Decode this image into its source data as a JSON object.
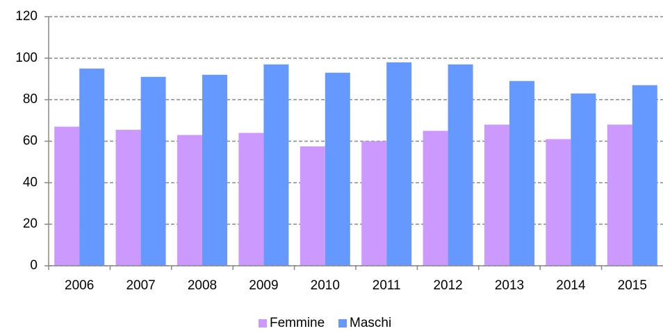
{
  "chart_data": {
    "type": "bar",
    "categories": [
      "2006",
      "2007",
      "2008",
      "2009",
      "2010",
      "2011",
      "2012",
      "2013",
      "2014",
      "2015"
    ],
    "series": [
      {
        "name": "Femmine",
        "color": "#cc99ff",
        "values": [
          67,
          65.5,
          63,
          64,
          57.5,
          60,
          65,
          68,
          61,
          68
        ]
      },
      {
        "name": "Maschi",
        "color": "#6699ff",
        "values": [
          95,
          91,
          92,
          97,
          93,
          98,
          97,
          89,
          83,
          87
        ]
      }
    ],
    "ylim": [
      0,
      120
    ],
    "yticks": [
      0,
      20,
      40,
      60,
      80,
      100,
      120
    ],
    "grid": true,
    "legend": "bottom"
  }
}
